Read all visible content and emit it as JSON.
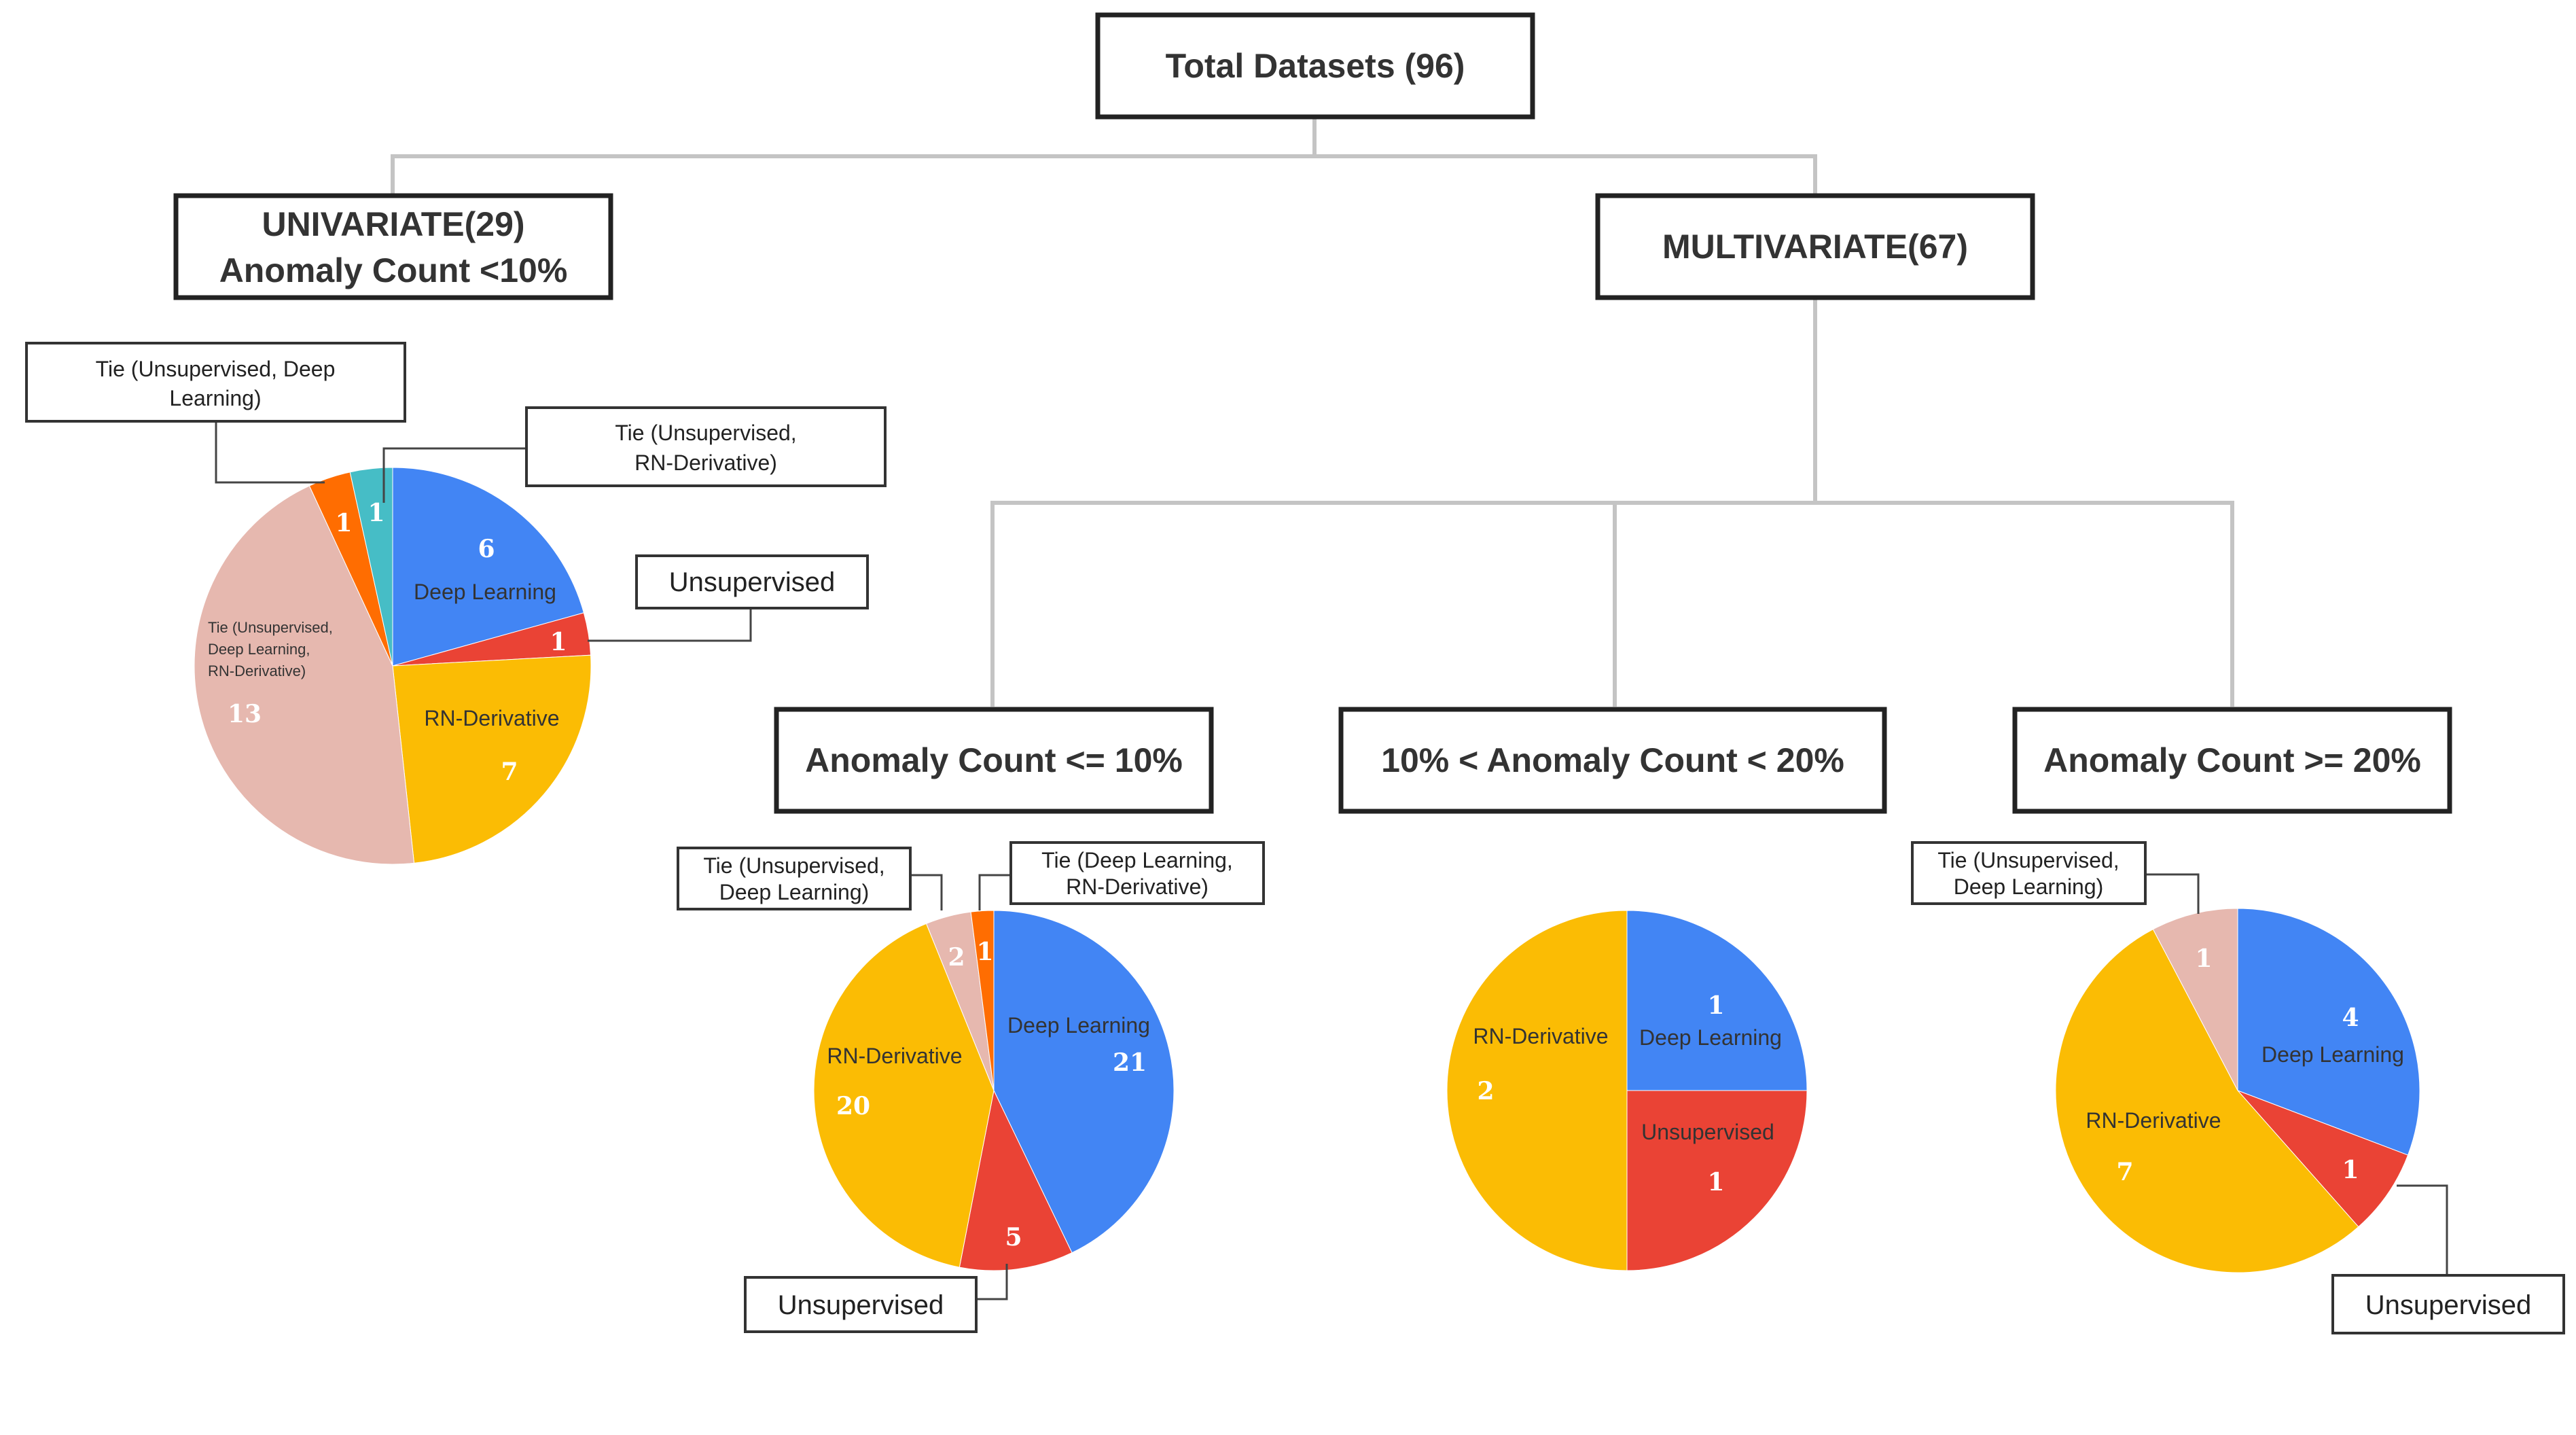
{
  "colors": {
    "deep_learning": "#4285F4",
    "unsupervised": "#EA4335",
    "rn_derivative": "#FBBC04",
    "tie_unsup_deep": "#E6B8AF",
    "tie_unsup_deep_rn": "#E6B8AF",
    "tie_unsup_rn": "#46BDC6",
    "tie_deep_rn": "#FF6D01",
    "tie_unsup_deep_orange": "#FF6D01"
  },
  "nodes": {
    "root": "Total Datasets (96)",
    "univariate_line1": "UNIVARIATE(29)",
    "univariate_line2": "Anomaly Count <10%",
    "multivariate": "MULTIVARIATE(67)",
    "multi_low": "Anomaly Count <= 10%",
    "multi_mid": "10% < Anomaly Count < 20%",
    "multi_high": "Anomaly Count >= 20%"
  },
  "callouts": {
    "uni_tie_unsup_deep_l1": "Tie (Unsupervised, Deep",
    "uni_tie_unsup_deep_l2": "Learning)",
    "uni_tie_unsup_rn_l1": "Tie (Unsupervised,",
    "uni_tie_unsup_rn_l2": "RN-Derivative)",
    "uni_unsupervised": "Unsupervised",
    "low_tie_unsup_deep_l1": "Tie (Unsupervised,",
    "low_tie_unsup_deep_l2": "Deep Learning)",
    "low_tie_deep_rn_l1": "Tie (Deep Learning,",
    "low_tie_deep_rn_l2": "RN-Derivative)",
    "low_unsupervised": "Unsupervised",
    "high_tie_unsup_deep_l1": "Tie (Unsupervised,",
    "high_tie_unsup_deep_l2": "Deep Learning)",
    "high_unsupervised": "Unsupervised"
  },
  "chart_data": [
    {
      "type": "pie",
      "group": "UNIVARIATE(29) Anomaly Count <10%",
      "slices": [
        {
          "label": "Deep Learning",
          "value": 6,
          "color_key": "deep_learning"
        },
        {
          "label": "Unsupervised",
          "value": 1,
          "color_key": "unsupervised"
        },
        {
          "label": "RN-Derivative",
          "value": 7,
          "color_key": "rn_derivative"
        },
        {
          "label_lines": [
            "Tie (Unsupervised,",
            "Deep Learning,",
            "RN-Derivative)"
          ],
          "value": 13,
          "color_key": "tie_unsup_deep_rn"
        },
        {
          "label": "Tie (Unsupervised, Deep Learning)",
          "value": 1,
          "color_key": "tie_unsup_deep_orange"
        },
        {
          "label": "Tie (Unsupervised, RN-Derivative)",
          "value": 1,
          "color_key": "tie_unsup_rn"
        }
      ]
    },
    {
      "type": "pie",
      "group": "Anomaly Count <= 10%",
      "slices": [
        {
          "label": "Deep Learning",
          "value": 21,
          "color_key": "deep_learning"
        },
        {
          "label": "Unsupervised",
          "value": 5,
          "color_key": "unsupervised"
        },
        {
          "label": "RN-Derivative",
          "value": 20,
          "color_key": "rn_derivative"
        },
        {
          "label": "Tie (Unsupervised, Deep Learning)",
          "value": 2,
          "color_key": "tie_unsup_deep"
        },
        {
          "label": "Tie (Deep Learning, RN-Derivative)",
          "value": 1,
          "color_key": "tie_deep_rn"
        }
      ]
    },
    {
      "type": "pie",
      "group": "10% < Anomaly Count < 20%",
      "slices": [
        {
          "label": "Deep Learning",
          "value": 1,
          "color_key": "deep_learning"
        },
        {
          "label": "Unsupervised",
          "value": 1,
          "color_key": "unsupervised"
        },
        {
          "label": "RN-Derivative",
          "value": 2,
          "color_key": "rn_derivative"
        }
      ]
    },
    {
      "type": "pie",
      "group": "Anomaly Count >= 20%",
      "slices": [
        {
          "label": "Deep Learning",
          "value": 4,
          "color_key": "deep_learning"
        },
        {
          "label": "Unsupervised",
          "value": 1,
          "color_key": "unsupervised"
        },
        {
          "label": "RN-Derivative",
          "value": 7,
          "color_key": "rn_derivative"
        },
        {
          "label": "Tie (Unsupervised, Deep Learning)",
          "value": 1,
          "color_key": "tie_unsup_deep"
        }
      ]
    }
  ]
}
